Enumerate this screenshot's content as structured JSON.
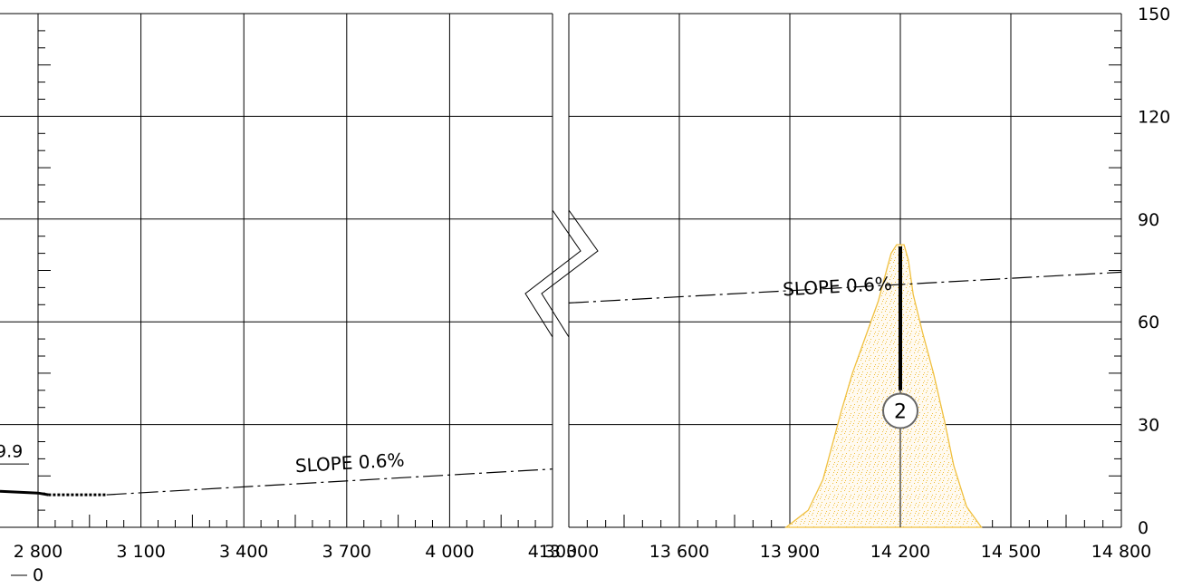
{
  "chart_data": {
    "type": "line",
    "title": "",
    "panels": [
      {
        "name": "left-panel",
        "x_range": [
          2800,
          4300
        ],
        "x_ticks": [
          2800,
          3100,
          3400,
          3700,
          4000,
          4300
        ],
        "x_tick_labels": [
          "2 800",
          "3 100",
          "3 400",
          "3 700",
          "4 000",
          "4 300"
        ]
      },
      {
        "name": "right-panel",
        "x_range": [
          13300,
          14800
        ],
        "x_ticks": [
          13300,
          13600,
          13900,
          14200,
          14500,
          14800
        ],
        "x_tick_labels": [
          "13 300",
          "13 600",
          "13 900",
          "14 200",
          "14 500",
          "14 800"
        ]
      }
    ],
    "y_range": [
      0,
      150
    ],
    "y_ticks": [
      0,
      30,
      60,
      90,
      120,
      150
    ],
    "y_tick_labels": [
      "0",
      "30",
      "60",
      "90",
      "120",
      "150"
    ],
    "grid": true,
    "series": [
      {
        "kind": "dash-dot-line",
        "panel": 0,
        "points": [
          [
            3000,
            9.5
          ],
          [
            4300,
            17
          ]
        ],
        "label": "SLOPE 0.6%",
        "label_at": [
          3710,
          17
        ]
      },
      {
        "kind": "dash-dot-line",
        "panel": 1,
        "points": [
          [
            13300,
            65.5
          ],
          [
            14800,
            74.5
          ]
        ],
        "label": "SLOPE 0.6%",
        "label_at": [
          14030,
          68.5
        ]
      },
      {
        "kind": "solid-segment",
        "panel": 0,
        "points": [
          [
            2800,
            10
          ],
          [
            2830,
            9.5
          ]
        ]
      },
      {
        "kind": "dotted-segment",
        "panel": 0,
        "points": [
          [
            2830,
            9.5
          ],
          [
            2998,
            9.5
          ]
        ]
      }
    ],
    "partial_label": "9.9",
    "bottom_partial_label": "0",
    "site_marker": {
      "label": "2",
      "panel": 1,
      "x": 14200,
      "y": 34,
      "bar_top": 82,
      "bar_bottom": 40
    },
    "shaded_area": {
      "panel": 1,
      "color": "#f0c040",
      "outline": [
        [
          13890,
          0
        ],
        [
          13950,
          5
        ],
        [
          13990,
          14
        ],
        [
          14020,
          26
        ],
        [
          14040,
          34
        ],
        [
          14070,
          45
        ],
        [
          14110,
          57
        ],
        [
          14140,
          66
        ],
        [
          14160,
          74
        ],
        [
          14175,
          80
        ],
        [
          14190,
          82.5
        ],
        [
          14210,
          82.5
        ],
        [
          14222,
          78
        ],
        [
          14235,
          68
        ],
        [
          14260,
          57
        ],
        [
          14290,
          45
        ],
        [
          14320,
          31
        ],
        [
          14345,
          18
        ],
        [
          14380,
          6
        ],
        [
          14420,
          0
        ]
      ]
    }
  }
}
